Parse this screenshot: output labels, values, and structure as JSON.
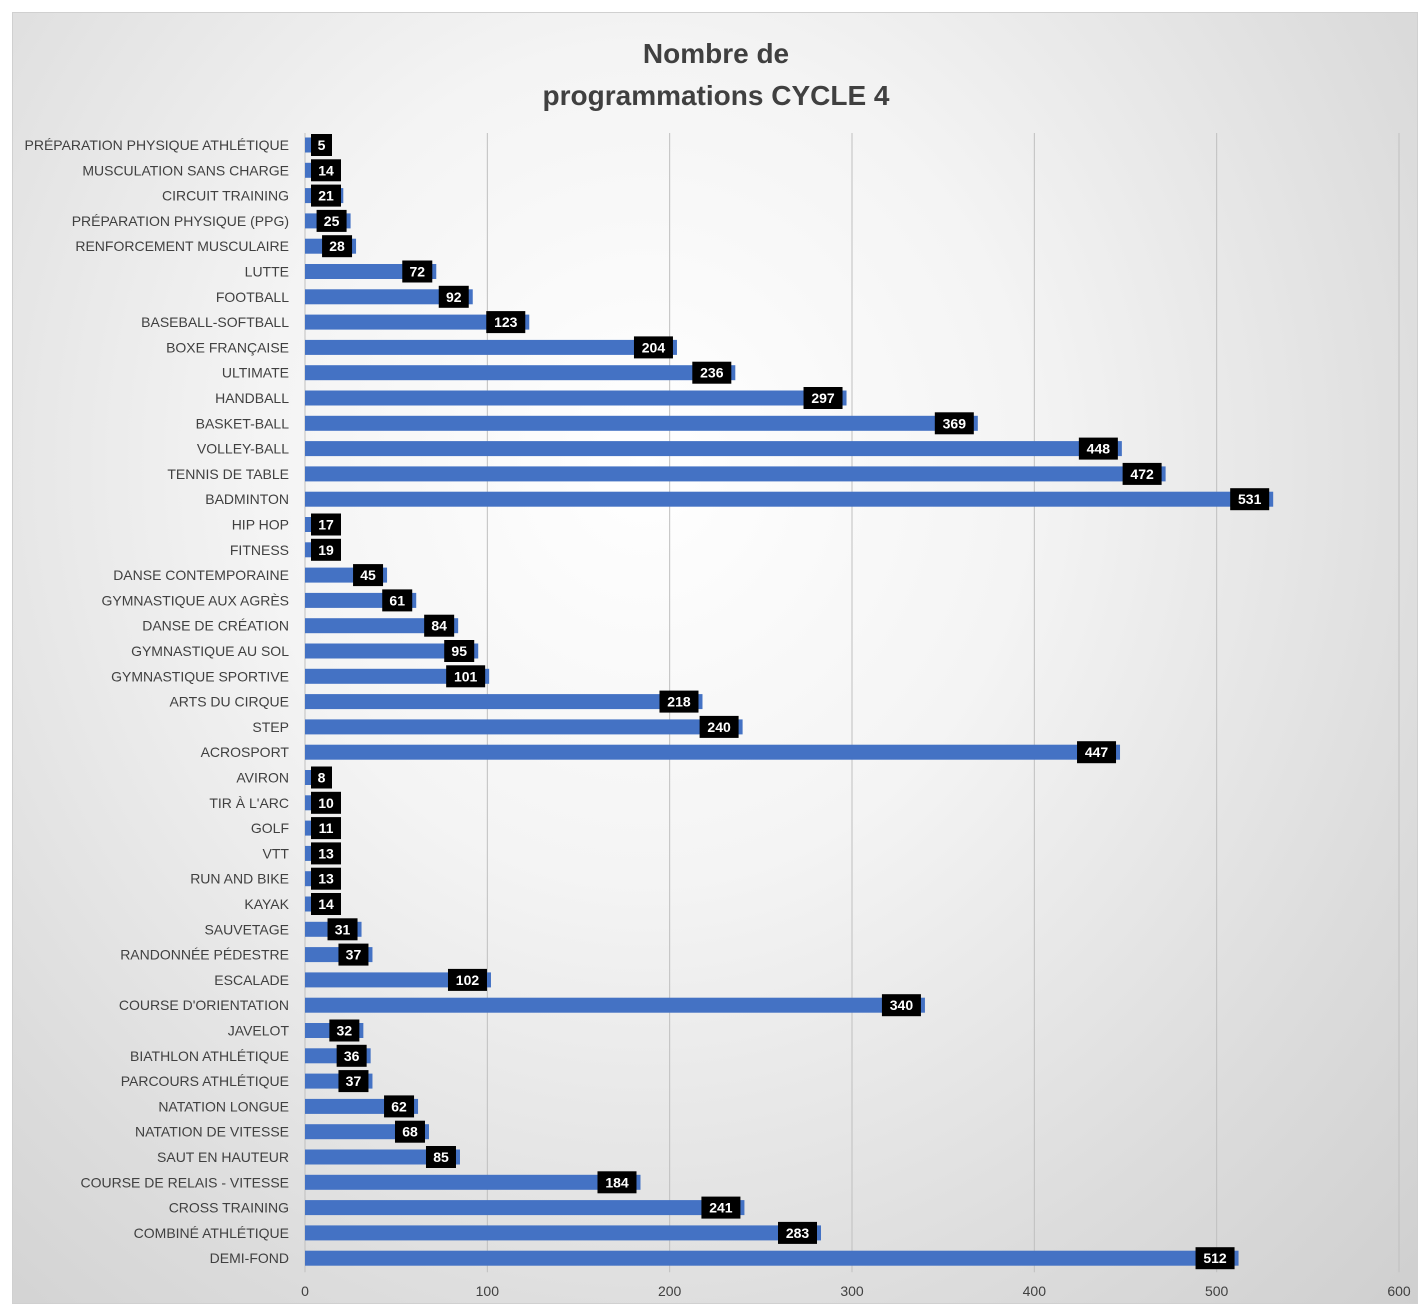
{
  "chart_data": {
    "type": "bar",
    "orientation": "horizontal",
    "title": "Nombre de programmations CYCLE 4",
    "title_lines": [
      "Nombre de",
      "programmations CYCLE 4"
    ],
    "xlim": [
      0,
      600
    ],
    "x_ticks": [
      "0",
      "100",
      "200",
      "300",
      "400",
      "500",
      "600"
    ],
    "x_tick_values": [
      0,
      100,
      200,
      300,
      400,
      500,
      600
    ],
    "grid": "vertical",
    "bar_color": "#4472C4",
    "label_box_color": "#000000",
    "label_text_color": "#ffffff",
    "categories": [
      "PRÉPARATION PHYSIQUE ATHLÉTIQUE",
      "MUSCULATION SANS CHARGE",
      "CIRCUIT TRAINING",
      "PRÉPARATION PHYSIQUE (PPG)",
      "RENFORCEMENT MUSCULAIRE",
      "LUTTE",
      "FOOTBALL",
      "BASEBALL-SOFTBALL",
      "BOXE FRANÇAISE",
      "ULTIMATE",
      "HANDBALL",
      "BASKET-BALL",
      "VOLLEY-BALL",
      "TENNIS DE TABLE",
      "BADMINTON",
      "HIP HOP",
      "FITNESS",
      "DANSE CONTEMPORAINE",
      "GYMNASTIQUE AUX AGRÈS",
      "DANSE DE CRÉATION",
      "GYMNASTIQUE AU SOL",
      "GYMNASTIQUE SPORTIVE",
      "ARTS DU CIRQUE",
      "STEP",
      "ACROSPORT",
      "AVIRON",
      "TIR À L'ARC",
      "GOLF",
      "VTT",
      "RUN AND BIKE",
      "KAYAK",
      "SAUVETAGE",
      "RANDONNÉE PÉDESTRE",
      "ESCALADE",
      "COURSE D'ORIENTATION",
      "JAVELOT",
      "BIATHLON ATHLÉTIQUE",
      "PARCOURS ATHLÉTIQUE",
      "NATATION LONGUE",
      "NATATION DE VITESSE",
      "SAUT EN HAUTEUR",
      "COURSE DE RELAIS - VITESSE",
      "CROSS TRAINING",
      "COMBINÉ ATHLÉTIQUE",
      "DEMI-FOND"
    ],
    "values": [
      5,
      14,
      21,
      25,
      28,
      72,
      92,
      123,
      204,
      236,
      297,
      369,
      448,
      472,
      531,
      17,
      19,
      45,
      61,
      84,
      95,
      101,
      218,
      240,
      447,
      8,
      10,
      11,
      13,
      13,
      14,
      31,
      37,
      102,
      340,
      32,
      36,
      37,
      62,
      68,
      85,
      184,
      241,
      283,
      512
    ]
  }
}
